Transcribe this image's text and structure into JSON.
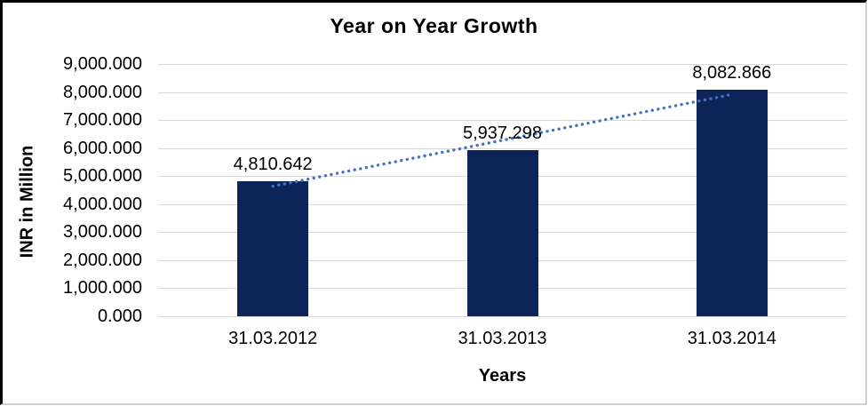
{
  "chart_data": {
    "type": "bar",
    "title": "Year on Year Growth",
    "xlabel": "Years",
    "ylabel": "INR in Million",
    "categories": [
      "31.03.2012",
      "31.03.2013",
      "31.03.2014"
    ],
    "values": [
      4810.642,
      5937.298,
      8082.866
    ],
    "bar_labels": [
      "4,810.642",
      "5,937.298",
      "8,082.866"
    ],
    "y_tick_labels": [
      "9,000.000",
      "8,000.000",
      "7,000.000",
      "6,000.000",
      "5,000.000",
      "4,000.000",
      "3,000.000",
      "2,000.000",
      "1,000.000",
      "0.000"
    ],
    "ylim": [
      0,
      9000
    ],
    "y_tick_step": 1000,
    "grid": true,
    "legend_position": "none",
    "trendline": {
      "type": "linear",
      "style": "dotted"
    },
    "colors": {
      "bar": "#0d2459",
      "trendline": "#4472c4",
      "gridline": "#d9d9d9",
      "text": "#000000",
      "frame_dark": "#000000",
      "frame_light": "#cfcfcf",
      "background": "#ffffff"
    }
  }
}
